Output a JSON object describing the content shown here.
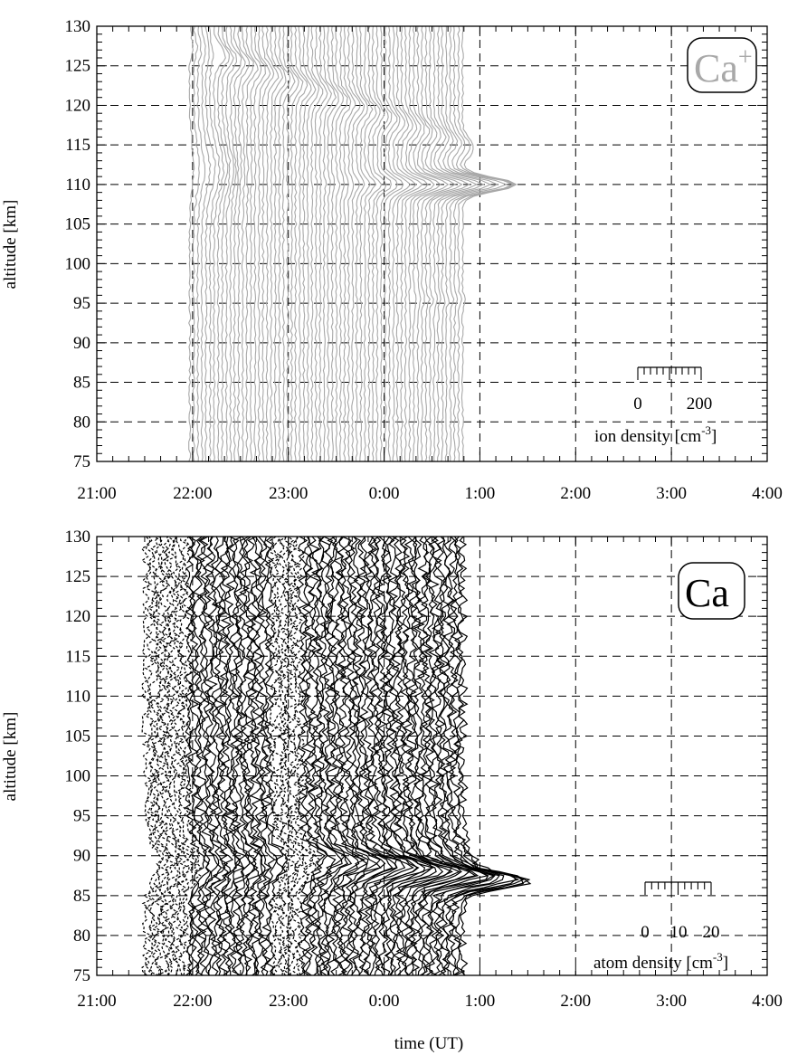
{
  "chart_data": [
    {
      "type": "line",
      "panel": "top",
      "species_label": "Ca",
      "species_superscript": "+",
      "ylabel": "altitude [km]",
      "xlabel": "",
      "x_tick_labels": [
        "21:00",
        "22:00",
        "23:00",
        "0:00",
        "1:00",
        "2:00",
        "3:00",
        "4:00"
      ],
      "y_tick_labels": [
        "75",
        "80",
        "85",
        "90",
        "95",
        "100",
        "105",
        "110",
        "115",
        "120",
        "125",
        "130"
      ],
      "xlim_hours": [
        21,
        28
      ],
      "ylim": [
        75,
        130
      ],
      "grid": true,
      "line_color": "#a8a8a8",
      "profiles": {
        "start_hour": 21.97,
        "end_hour": 24.82,
        "count": 68
      },
      "layers": [
        {
          "description": "sporadic Ca+ layer",
          "peak_altitude_km": 110,
          "peak_density_cm3": 200,
          "peak_time": "0:45"
        },
        {
          "description": "upper descending layer",
          "start_altitude_km": 125,
          "end_altitude_km": 115,
          "start_time": "22:40",
          "end_time": "0:30"
        }
      ],
      "scale_bar": {
        "min_label": "0",
        "max_label": "200",
        "title_prefix": "ion density [cm",
        "title_exponent": "-3",
        "title_suffix": "]",
        "max_value": 200
      }
    },
    {
      "type": "line",
      "panel": "bottom",
      "species_label": "Ca",
      "ylabel": "altitude [km]",
      "xlabel": "time (UT)",
      "x_tick_labels": [
        "21:00",
        "22:00",
        "23:00",
        "0:00",
        "1:00",
        "2:00",
        "3:00",
        "4:00"
      ],
      "y_tick_labels": [
        "75",
        "80",
        "85",
        "90",
        "95",
        "100",
        "105",
        "110",
        "115",
        "120",
        "125",
        "130"
      ],
      "xlim_hours": [
        21,
        28
      ],
      "ylim": [
        75,
        130
      ],
      "grid": true,
      "line_color": "#000000",
      "profiles": {
        "start_hour": 21.52,
        "end_hour": 24.82,
        "count": 88,
        "dashed_ranges_hours": [
          [
            21.52,
            21.95
          ],
          [
            22.82,
            23.15
          ]
        ]
      },
      "layers": [
        {
          "description": "sporadic Ca layer",
          "peak_altitude_km": 87.5,
          "peak_density_cm3": 20,
          "peak_time": "0:45"
        }
      ],
      "scale_bar": {
        "min_label": "0",
        "mid_label": "10",
        "max_label": "20",
        "title_prefix": "atom density [cm",
        "title_exponent": "-3",
        "title_suffix": "]",
        "max_value": 20
      }
    }
  ]
}
